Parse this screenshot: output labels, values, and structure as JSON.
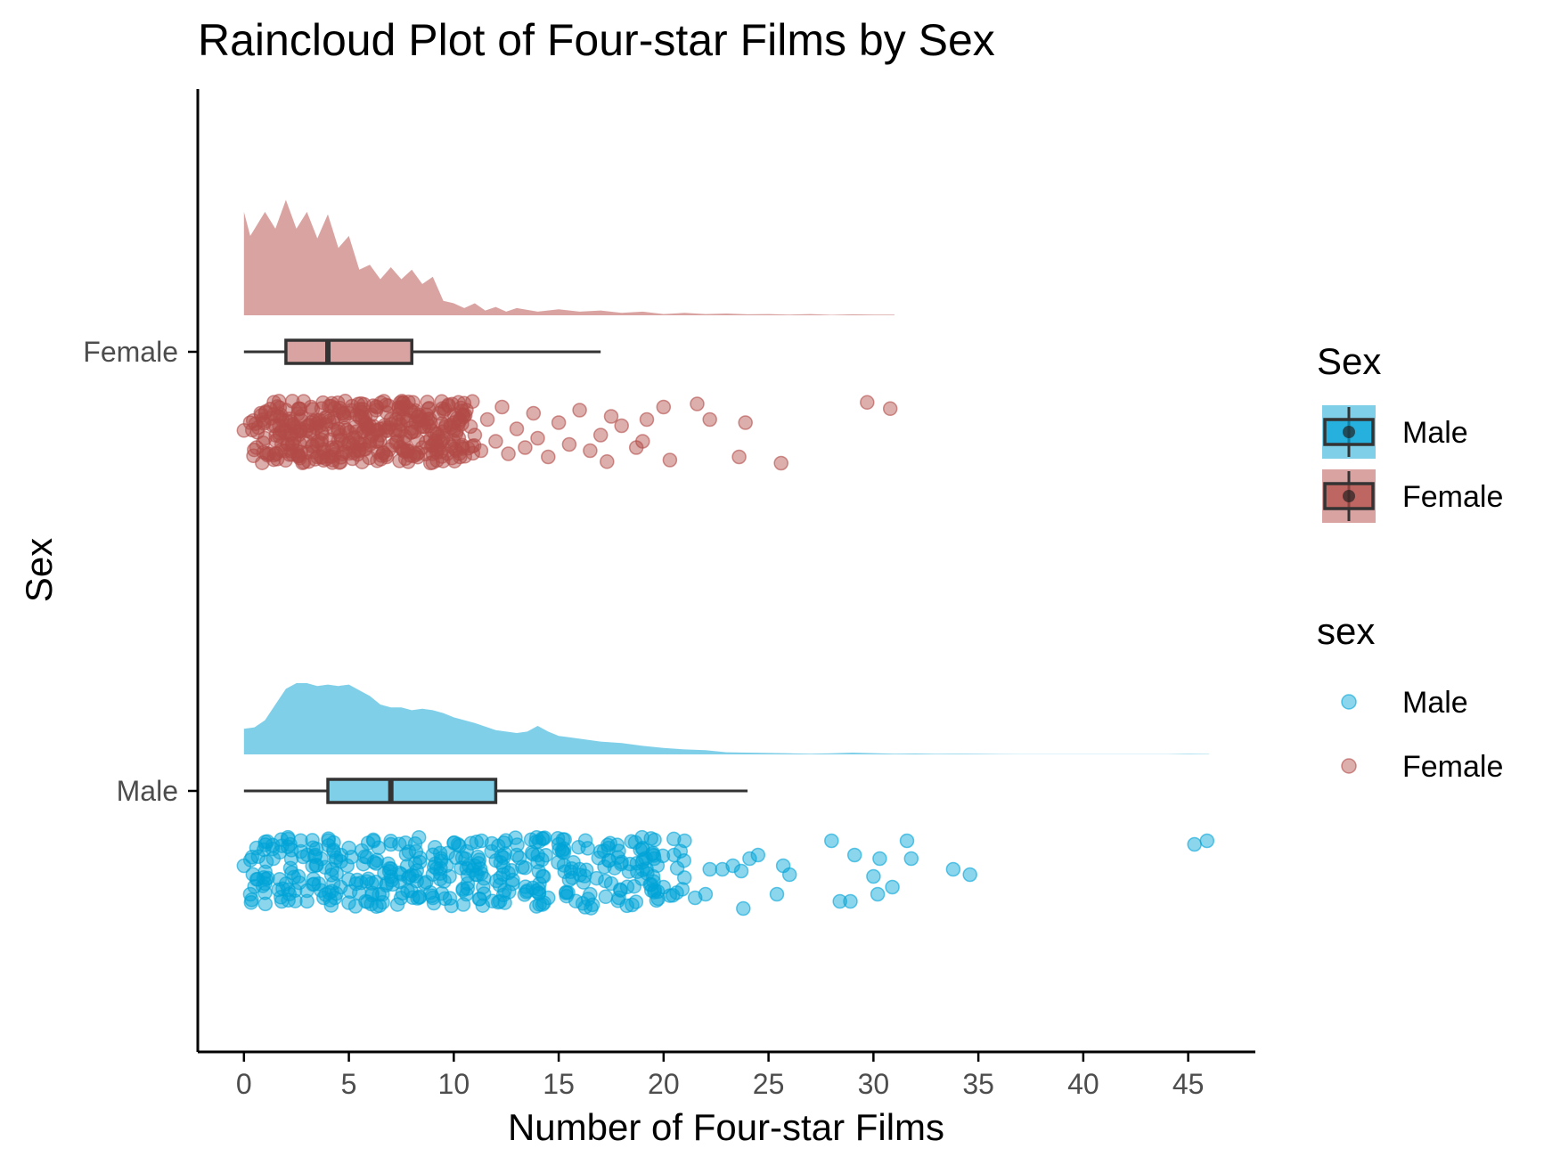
{
  "chart_data": {
    "type": "raincloud",
    "title": "Raincloud Plot of Four-star Films by Sex",
    "xlabel": "Number of Four-star Films",
    "ylabel": "Sex",
    "xlim": [
      -2.2,
      48.2
    ],
    "x_ticks": [
      0,
      5,
      10,
      15,
      20,
      25,
      30,
      35,
      40,
      45
    ],
    "grid": false,
    "legend_position": "right",
    "categories": [
      "Female",
      "Male"
    ],
    "colors": {
      "Male": "#00a3d7",
      "Female": "#b24b47",
      "Male_fill": "#7fcfe9",
      "Female_fill": "#d9a3a2",
      "box_stroke": "#333333"
    },
    "series": [
      {
        "name": "Female",
        "box": {
          "min": 0,
          "q1": 2,
          "median": 4,
          "q3": 8,
          "max": 17
        },
        "density": [
          [
            0,
            0.86
          ],
          [
            0.3,
            0.66
          ],
          [
            1,
            0.86
          ],
          [
            1.5,
            0.72
          ],
          [
            2,
            0.96
          ],
          [
            2.5,
            0.72
          ],
          [
            3,
            0.86
          ],
          [
            3.5,
            0.64
          ],
          [
            4,
            0.84
          ],
          [
            4.5,
            0.56
          ],
          [
            5,
            0.66
          ],
          [
            5.5,
            0.38
          ],
          [
            6,
            0.42
          ],
          [
            6.5,
            0.3
          ],
          [
            7,
            0.4
          ],
          [
            7.5,
            0.3
          ],
          [
            8,
            0.38
          ],
          [
            8.5,
            0.26
          ],
          [
            9,
            0.32
          ],
          [
            9.5,
            0.12
          ],
          [
            10,
            0.1
          ],
          [
            10.5,
            0.06
          ],
          [
            11,
            0.1
          ],
          [
            11.5,
            0.04
          ],
          [
            12,
            0.07
          ],
          [
            12.5,
            0.03
          ],
          [
            13,
            0.06
          ],
          [
            14,
            0.03
          ],
          [
            15,
            0.05
          ],
          [
            16,
            0.03
          ],
          [
            17,
            0.04
          ],
          [
            18,
            0.02
          ],
          [
            19,
            0.03
          ],
          [
            20,
            0.01
          ],
          [
            21,
            0.02
          ],
          [
            22,
            0.01
          ],
          [
            23,
            0.015
          ],
          [
            24,
            0.008
          ],
          [
            25,
            0.01
          ],
          [
            26,
            0.006
          ],
          [
            27,
            0.01
          ],
          [
            28,
            0.004
          ],
          [
            29,
            0.008
          ],
          [
            30,
            0.006
          ],
          [
            31,
            0.005
          ]
        ],
        "points": [
          [
            0,
            -0.05
          ],
          [
            0.3,
            -0.3
          ],
          [
            0.6,
            0.5
          ],
          [
            0.8,
            -0.6
          ],
          [
            1,
            0.2
          ],
          [
            1.2,
            0.7
          ],
          [
            1.5,
            -0.2
          ],
          [
            1.8,
            0.4
          ],
          [
            2,
            -0.7
          ],
          [
            2.2,
            0.1
          ],
          [
            2.5,
            0.6
          ],
          [
            2.7,
            -0.4
          ],
          [
            3,
            0.3
          ],
          [
            3.2,
            -0.8
          ],
          [
            3.5,
            0.8
          ],
          [
            3.7,
            0
          ],
          [
            4,
            -0.5
          ],
          [
            4.2,
            0.5
          ],
          [
            4.5,
            -0.1
          ],
          [
            4.7,
            0.7
          ],
          [
            5,
            -0.6
          ],
          [
            5.2,
            0.2
          ],
          [
            5.5,
            0.6
          ],
          [
            5.8,
            -0.3
          ],
          [
            6,
            0.4
          ],
          [
            6.3,
            -0.7
          ],
          [
            6.5,
            0.1
          ],
          [
            6.8,
            0.8
          ],
          [
            7,
            -0.4
          ],
          [
            7.3,
            0.3
          ],
          [
            7.5,
            -0.8
          ],
          [
            7.8,
            0.6
          ],
          [
            8,
            0
          ],
          [
            8.3,
            -0.5
          ],
          [
            8.5,
            0.5
          ],
          [
            8.8,
            -0.2
          ],
          [
            9,
            0.7
          ],
          [
            9.3,
            -0.6
          ],
          [
            9.5,
            0.2
          ],
          [
            9.8,
            0.4
          ],
          [
            10,
            -0.3
          ],
          [
            10.3,
            0.8
          ],
          [
            10.6,
            -0.7
          ],
          [
            11,
            0.1
          ],
          [
            11.3,
            0.6
          ],
          [
            11.6,
            -0.4
          ],
          [
            12,
            0.3
          ],
          [
            12.3,
            -0.8
          ],
          [
            12.6,
            0.7
          ],
          [
            13,
            -0.1
          ],
          [
            13.4,
            0.5
          ],
          [
            13.8,
            -0.6
          ],
          [
            14,
            0.2
          ],
          [
            14.5,
            0.8
          ],
          [
            15,
            -0.3
          ],
          [
            15.5,
            0.4
          ],
          [
            16,
            -0.7
          ],
          [
            16.5,
            0.6
          ],
          [
            17,
            0.1
          ],
          [
            17.3,
            0.95
          ],
          [
            17.5,
            -0.5
          ],
          [
            18,
            -0.2
          ],
          [
            18.7,
            0.5
          ],
          [
            19,
            0.3
          ],
          [
            19.2,
            -0.4
          ],
          [
            20,
            -0.8
          ],
          [
            20.3,
            0.9
          ],
          [
            21.6,
            -0.9
          ],
          [
            22.2,
            -0.4
          ],
          [
            23.6,
            0.8
          ],
          [
            23.9,
            -0.3
          ],
          [
            25.6,
            1
          ],
          [
            29.7,
            -0.95
          ],
          [
            30.8,
            -0.75
          ]
        ],
        "point_clusters": [
          [
            0.3,
            1.2
          ],
          [
            1,
            2
          ],
          [
            1.5,
            2.5
          ],
          [
            2,
            3
          ],
          [
            2.5,
            3.5
          ],
          [
            3,
            4
          ],
          [
            3.5,
            4.5
          ],
          [
            4,
            5
          ],
          [
            4.5,
            5.5
          ],
          [
            5,
            6
          ],
          [
            5.5,
            6.5
          ],
          [
            6,
            7
          ],
          [
            6.5,
            7.5
          ],
          [
            7,
            8
          ],
          [
            7.5,
            8.5
          ],
          [
            8,
            9
          ],
          [
            8.5,
            9.5
          ],
          [
            9,
            10
          ],
          [
            9.5,
            10.5
          ],
          [
            10,
            11
          ]
        ]
      },
      {
        "name": "Male",
        "box": {
          "min": 0,
          "q1": 4,
          "median": 7,
          "q3": 12,
          "max": 24
        },
        "density": [
          [
            0,
            0.36
          ],
          [
            0.5,
            0.38
          ],
          [
            1,
            0.48
          ],
          [
            1.5,
            0.7
          ],
          [
            2,
            0.92
          ],
          [
            2.5,
            1
          ],
          [
            3,
            1
          ],
          [
            3.5,
            0.96
          ],
          [
            4,
            0.98
          ],
          [
            4.5,
            0.96
          ],
          [
            5,
            0.98
          ],
          [
            5.5,
            0.9
          ],
          [
            6,
            0.82
          ],
          [
            6.5,
            0.7
          ],
          [
            7,
            0.66
          ],
          [
            7.5,
            0.66
          ],
          [
            8,
            0.62
          ],
          [
            8.5,
            0.64
          ],
          [
            9,
            0.62
          ],
          [
            9.5,
            0.58
          ],
          [
            10,
            0.52
          ],
          [
            11,
            0.44
          ],
          [
            12,
            0.34
          ],
          [
            13,
            0.3
          ],
          [
            13.5,
            0.32
          ],
          [
            14,
            0.4
          ],
          [
            14.5,
            0.32
          ],
          [
            15,
            0.26
          ],
          [
            16,
            0.22
          ],
          [
            17,
            0.18
          ],
          [
            18,
            0.16
          ],
          [
            19,
            0.12
          ],
          [
            20,
            0.09
          ],
          [
            21,
            0.07
          ],
          [
            22,
            0.06
          ],
          [
            23,
            0.03
          ],
          [
            24,
            0.025
          ],
          [
            25,
            0.02
          ],
          [
            26,
            0.015
          ],
          [
            27,
            0.01
          ],
          [
            28,
            0.015
          ],
          [
            29,
            0.025
          ],
          [
            30,
            0.018
          ],
          [
            31,
            0.01
          ],
          [
            32,
            0.012
          ],
          [
            33,
            0.008
          ],
          [
            34,
            0.01
          ],
          [
            35,
            0.008
          ],
          [
            36,
            0.005
          ],
          [
            38,
            0.003
          ],
          [
            40,
            0.002
          ],
          [
            42,
            0.002
          ],
          [
            44,
            0.004
          ],
          [
            45,
            0.008
          ],
          [
            46,
            0.005
          ]
        ],
        "points": [
          [
            0,
            -0.2
          ],
          [
            0.3,
            0.6
          ],
          [
            0.6,
            -0.7
          ],
          [
            1,
            0.3
          ],
          [
            1.4,
            -0.4
          ],
          [
            1.8,
            0.8
          ],
          [
            2.2,
            -0.8
          ],
          [
            2.6,
            0.1
          ],
          [
            3,
            0.5
          ],
          [
            3.4,
            -0.5
          ],
          [
            3.8,
            0.7
          ],
          [
            4.2,
            -0.1
          ],
          [
            4.6,
            0.4
          ],
          [
            5,
            -0.7
          ],
          [
            5.4,
            0.2
          ],
          [
            5.8,
            0.8
          ],
          [
            6.2,
            -0.3
          ],
          [
            6.6,
            0.6
          ],
          [
            7,
            -0.8
          ],
          [
            7.4,
            0
          ],
          [
            7.8,
            0.5
          ],
          [
            8.2,
            -0.6
          ],
          [
            8.6,
            0.3
          ],
          [
            9,
            0.7
          ],
          [
            9.4,
            -0.4
          ],
          [
            9.8,
            0.1
          ],
          [
            10.2,
            -0.8
          ],
          [
            10.6,
            0.6
          ],
          [
            11,
            -0.2
          ],
          [
            11.4,
            0.4
          ],
          [
            11.8,
            -0.6
          ],
          [
            12.2,
            0.8
          ],
          [
            12.6,
            0
          ],
          [
            13,
            -0.5
          ],
          [
            13.5,
            0.5
          ],
          [
            14,
            -0.3
          ],
          [
            14.5,
            0.7
          ],
          [
            15,
            -0.8
          ],
          [
            15.5,
            0.2
          ],
          [
            16,
            -0.1
          ],
          [
            16.5,
            0.6
          ],
          [
            17,
            -0.6
          ],
          [
            17.5,
            0.3
          ],
          [
            18,
            -0.3
          ],
          [
            18.5,
            0.9
          ],
          [
            19,
            -0.7
          ],
          [
            19.5,
            0.1
          ],
          [
            20,
            0.4
          ],
          [
            20.5,
            -0.5
          ],
          [
            21,
            -0.9
          ],
          [
            21.5,
            0.7
          ],
          [
            22,
            0.6
          ],
          [
            22.2,
            -0.1
          ],
          [
            22.8,
            -0.1
          ],
          [
            23.3,
            -0.2
          ],
          [
            23.7,
            -0.05
          ],
          [
            23.8,
            1
          ],
          [
            24.1,
            -0.4
          ],
          [
            24.5,
            -0.5
          ],
          [
            25.4,
            0.6
          ],
          [
            25.7,
            -0.2
          ],
          [
            26,
            0.05
          ],
          [
            28,
            -0.9
          ],
          [
            28.4,
            0.8
          ],
          [
            28.9,
            0.8
          ],
          [
            29.1,
            -0.5
          ],
          [
            30,
            0.1
          ],
          [
            30.2,
            0.6
          ],
          [
            30.3,
            -0.4
          ],
          [
            30.9,
            0.4
          ],
          [
            31.6,
            -0.9
          ],
          [
            31.8,
            -0.4
          ],
          [
            33.8,
            -0.1
          ],
          [
            34.6,
            0.05
          ],
          [
            45.3,
            -0.8
          ],
          [
            45.9,
            -0.9
          ]
        ],
        "point_clusters": [
          [
            0.3,
            1.5
          ],
          [
            1,
            2.5
          ],
          [
            2,
            3.5
          ],
          [
            3,
            4.5
          ],
          [
            4,
            5.5
          ],
          [
            5,
            6.5
          ],
          [
            6,
            7.5
          ],
          [
            7,
            8.5
          ],
          [
            8,
            9.5
          ],
          [
            9,
            10.5
          ],
          [
            10,
            11.5
          ],
          [
            11,
            12.5
          ],
          [
            12,
            13.5
          ],
          [
            13,
            14.5
          ],
          [
            14,
            15.5
          ],
          [
            15,
            16.5
          ],
          [
            16,
            18
          ],
          [
            17,
            19
          ],
          [
            18,
            20
          ],
          [
            19,
            21
          ]
        ]
      }
    ],
    "legends": [
      {
        "title": "Sex",
        "kind": "box",
        "entries": [
          "Male",
          "Female"
        ]
      },
      {
        "title": "sex",
        "kind": "point",
        "entries": [
          "Male",
          "Female"
        ]
      }
    ]
  }
}
